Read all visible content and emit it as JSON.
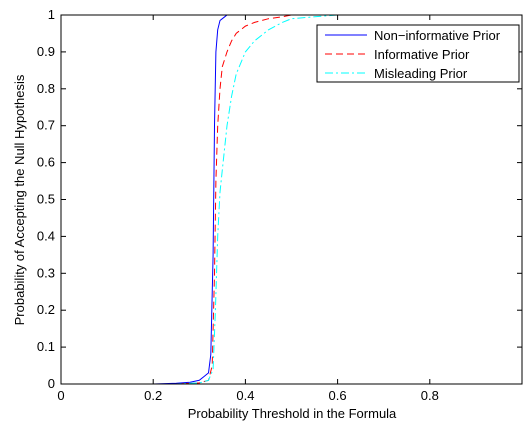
{
  "chart_data": {
    "type": "line",
    "title": "",
    "xlabel": "Probability Threshold in the Formula",
    "ylabel": "Probability of Accepting the Null Hypothesis",
    "xlim": [
      0,
      1
    ],
    "ylim": [
      0,
      1
    ],
    "xticks": [
      "0",
      "0.2",
      "0.4",
      "0.6",
      "0.8"
    ],
    "xtick_values": [
      0,
      0.2,
      0.4,
      0.6,
      0.8
    ],
    "yticks": [
      "0",
      "0.1",
      "0.2",
      "0.3",
      "0.4",
      "0.5",
      "0.6",
      "0.7",
      "0.8",
      "0.9",
      "1"
    ],
    "ytick_values": [
      0,
      0.1,
      0.2,
      0.3,
      0.4,
      0.5,
      0.6,
      0.7,
      0.8,
      0.9,
      1
    ],
    "grid": false,
    "legend_position": "top-right",
    "series": [
      {
        "name": "Non−informative Prior",
        "color": "#0000ff",
        "style": "solid",
        "x": [
          0,
          0.2,
          0.25,
          0.28,
          0.3,
          0.31,
          0.32,
          0.325,
          0.33,
          0.333,
          0.336,
          0.34,
          0.345,
          0.35,
          0.355,
          0.36,
          0.37,
          0.38,
          0.4,
          0.45,
          0.5,
          0.6,
          0.7,
          0.8,
          0.9,
          1.0
        ],
        "y": [
          0,
          0,
          0.002,
          0.005,
          0.01,
          0.02,
          0.03,
          0.08,
          0.35,
          0.7,
          0.9,
          0.96,
          0.985,
          0.99,
          0.995,
          1.0,
          1.0,
          1.0,
          1.0,
          1.0,
          1.0,
          1.0,
          1.0,
          1.0,
          1.0,
          1.0
        ]
      },
      {
        "name": "Informative Prior",
        "color": "#ff0000",
        "style": "dashed",
        "x": [
          0,
          0.25,
          0.3,
          0.32,
          0.328,
          0.333,
          0.336,
          0.34,
          0.345,
          0.35,
          0.36,
          0.37,
          0.38,
          0.4,
          0.42,
          0.45,
          0.48,
          0.5,
          0.55,
          0.6,
          0.7,
          0.8,
          0.9,
          1.0
        ],
        "y": [
          0,
          0,
          0.003,
          0.01,
          0.05,
          0.3,
          0.55,
          0.7,
          0.8,
          0.86,
          0.9,
          0.93,
          0.95,
          0.97,
          0.98,
          0.99,
          0.995,
          1.0,
          1.0,
          1.0,
          1.0,
          1.0,
          1.0,
          1.0
        ]
      },
      {
        "name": "Misleading Prior",
        "color": "#00ffff",
        "style": "dash-dot",
        "x": [
          0,
          0.25,
          0.3,
          0.32,
          0.33,
          0.335,
          0.34,
          0.345,
          0.35,
          0.36,
          0.37,
          0.38,
          0.4,
          0.42,
          0.45,
          0.48,
          0.5,
          0.55,
          0.6,
          0.7,
          0.8,
          0.9,
          1.0
        ],
        "y": [
          0,
          0,
          0.003,
          0.01,
          0.04,
          0.2,
          0.4,
          0.52,
          0.58,
          0.7,
          0.78,
          0.84,
          0.9,
          0.93,
          0.96,
          0.98,
          0.99,
          0.995,
          1.0,
          1.0,
          1.0,
          1.0,
          1.0
        ]
      }
    ]
  }
}
